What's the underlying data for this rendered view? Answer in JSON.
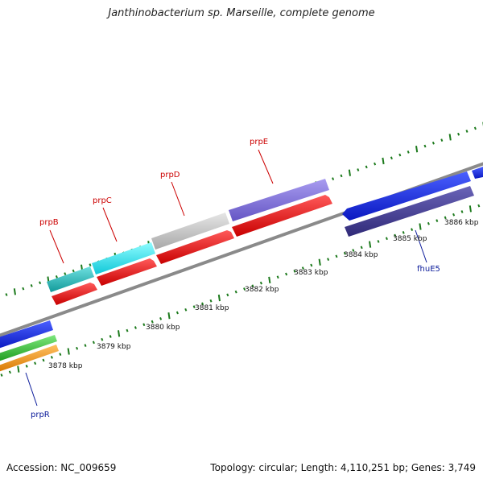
{
  "title": "Janthinobacterium sp. Marseille, complete genome",
  "footer": {
    "accession": "Accession: NC_009659",
    "summary": "Topology: circular; Length: 4,110,251 bp; Genes: 3,749"
  },
  "colors": {
    "backbone": "#8a8a8a",
    "tick": "#1c7a1c",
    "gene_label_red": "#cc0000",
    "gene_label_blue": "#0a1a9a",
    "forward_cds": "#ee0000"
  },
  "scale_labels": [
    "3878 kbp",
    "3879 kbp",
    "3880 kbp",
    "3881 kbp",
    "3882 kbp",
    "3883 kbp",
    "3884 kbp",
    "3885 kbp",
    "3886 kbp"
  ],
  "gene_labels": {
    "prpB": "prpB",
    "prpC": "prpC",
    "prpD": "prpD",
    "prpE": "prpE",
    "fhuE5": "fhuE5",
    "prpR": "prpR"
  }
}
